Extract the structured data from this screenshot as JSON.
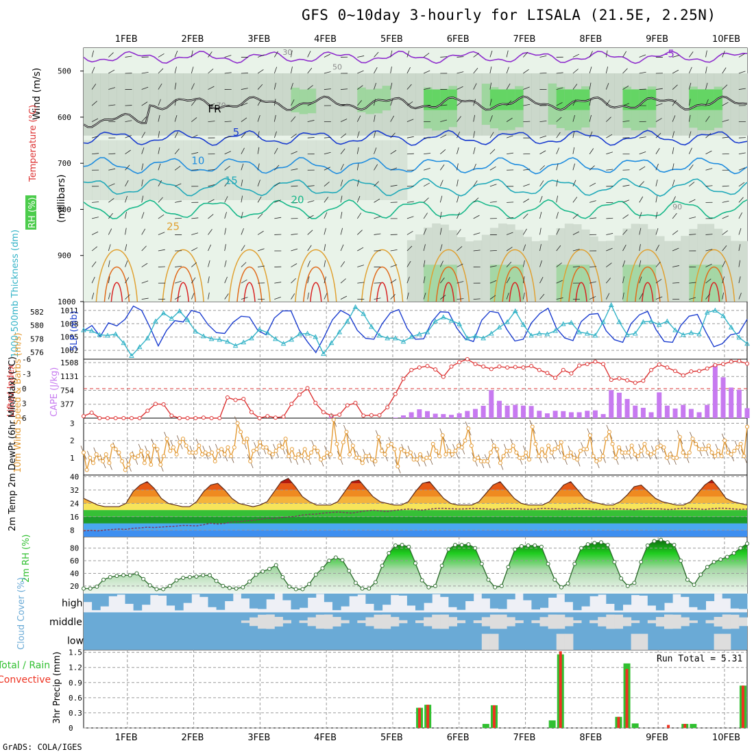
{
  "title": "GFS 0~10day 3-hourly for LISALA (21.5E, 2.25N)",
  "footer": "GrADS: COLA/IGES",
  "colors": {
    "grid": "#9a9a9a",
    "slp": "#1a3ccf",
    "thick": "#33b3c7",
    "li": "#dd3333",
    "cape": "#c77af0",
    "wind": "#e49a33",
    "rh": "#2fbf2f",
    "cloud": "#6aaad6",
    "precip_total": "#30c030",
    "precip_conv": "#ee3322"
  },
  "chart_data": [
    {
      "type": "contour",
      "name": "upper-air",
      "dates": [
        "1FEB",
        "2FEB",
        "3FEB",
        "4FEB",
        "5FEB",
        "6FEB",
        "7FEB",
        "8FEB",
        "9FEB",
        "10FEB"
      ],
      "ylabel": "(millibars)",
      "ylim": [
        1000,
        450
      ],
      "yticks": [
        500,
        600,
        700,
        800,
        900,
        1000
      ],
      "legend": [
        "Wind (m/s)",
        "Temperature (°C)",
        "RH (%)"
      ],
      "isotherm_labels": [
        {
          "text": "-5",
          "p": 500
        },
        {
          "text": "FR",
          "p": 610
        },
        {
          "text": "5",
          "p": 645
        },
        {
          "text": "10",
          "p": 700
        },
        {
          "text": "15",
          "p": 740
        },
        {
          "text": "20",
          "p": 775
        },
        {
          "text": "25",
          "p": 840
        }
      ],
      "rh_labels": [
        "30",
        "50",
        "70",
        "90"
      ]
    },
    {
      "type": "line",
      "name": "thickness-slp",
      "ylabel_left": "1000-500mb Thickness (dm)",
      "ylabel_right": "SLP (mb)",
      "left_ticks": [
        576,
        578,
        580,
        582
      ],
      "right_ticks": [
        1002,
        1005,
        1008,
        1011
      ],
      "series": [
        {
          "name": "SLP (mb)",
          "values": [
            1006.4,
            1007.6,
            1005.1,
            1008.2,
            1007.5,
            1009.0,
            1012.0,
            1011.0,
            1007.2,
            1003.0,
            1006.5,
            1008.7,
            1008.4,
            1011.0,
            1010.5,
            1007.8,
            1006.0,
            1005.8,
            1008.3,
            1009.7,
            1009.5,
            1006.5,
            1005.5,
            1009.3,
            1010.9,
            1010.9,
            1006.6,
            1003.9,
            1001.5,
            1005.0,
            1008.9,
            1011.0,
            1010.0,
            1006.5,
            1004.7,
            1004.5,
            1008.0,
            1010.5,
            1011.2,
            1007.0,
            1004.5,
            1004.6,
            1008.5,
            1010.7,
            1010.6,
            1007.0,
            1004.6,
            1004.0,
            1008.8,
            1010.8,
            1010.5,
            1006.8,
            1004.1,
            1004.5,
            1008.2,
            1010.3,
            1011.5,
            1007.0,
            1004.8,
            1004.2,
            1008.5,
            1010.1,
            1010.3,
            1006.4,
            1004.4,
            1003.8,
            1008.0,
            1010.0,
            1010.8,
            1006.7,
            1004.0,
            1003.8,
            1007.6,
            1009.7,
            1010.1,
            1006.2,
            1002.8,
            1003.5,
            1005.5,
            1005.9,
            1009.0
          ]
        },
        {
          "name": "Thickness (dm)",
          "values": [
            579.3,
            579.2,
            578.6,
            578.5,
            578.7,
            577.4,
            575.5,
            576.8,
            578.1,
            580.6,
            581.8,
            581.0,
            582.1,
            580.8,
            579.1,
            578.4,
            578.0,
            577.9,
            577.6,
            577.0,
            577.5,
            578.1,
            579.4,
            578.9,
            578.0,
            577.3,
            577.9,
            578.7,
            578.8,
            578.3,
            575.8,
            577.4,
            579.0,
            580.6,
            582.7,
            581.7,
            579.8,
            578.5,
            578.1,
            578.1,
            577.6,
            578.3,
            578.7,
            579.0,
            580.6,
            581.2,
            580.7,
            580.2,
            578.1,
            578.4,
            578.1,
            578.8,
            579.7,
            580.5,
            582.1,
            580.1,
            578.5,
            578.8,
            578.7,
            579.2,
            580.2,
            580.4,
            579.0,
            578.8,
            578.5,
            580.5,
            583.0,
            580.5,
            578.6,
            578.8,
            580.5,
            580.6,
            580.1,
            580.6,
            579.3,
            578.6,
            578.9,
            578.7,
            581.9,
            582.2,
            581.4,
            579.7,
            578.2,
            577.3
          ]
        }
      ]
    },
    {
      "type": "bar-line",
      "name": "cape-li",
      "ylabel_left": "Lifted Index",
      "ylabel_right": "CAPE (J/kg)",
      "li_ticks": [
        -6,
        -3,
        0,
        3,
        6
      ],
      "cape_ticks": [
        377,
        754,
        1131,
        1508
      ],
      "series": [
        {
          "name": "Lifted Index",
          "values": [
            5.6,
            4.9,
            6.0,
            6.0,
            6.0,
            6.0,
            6.0,
            6.0,
            4.5,
            3.1,
            3.2,
            5.5,
            6.0,
            6.0,
            6.0,
            5.9,
            6.0,
            6.0,
            1.8,
            2.3,
            2.1,
            4.8,
            6.0,
            5.6,
            5.9,
            5.7,
            3.1,
            1.2,
            -0.1,
            2.9,
            4.8,
            5.5,
            5.3,
            3.4,
            2.9,
            5.5,
            5.4,
            5.4,
            3.8,
            1.1,
            -2.0,
            -3.8,
            -4.3,
            -4.6,
            -3.9,
            -2.4,
            -4.5,
            -5.4,
            -6.0,
            -5.0,
            -4.5,
            -4.0,
            -4.5,
            -4.3,
            -4.4,
            -4.3,
            -4.6,
            -3.8,
            -3.2,
            -2.2,
            -3.8,
            -3.1,
            -4.7,
            -5.0,
            -5.5,
            -5.0,
            -1.8,
            -2.1,
            -1.7,
            -1.2,
            -1.6,
            -3.8,
            -4.9,
            -4.3,
            -3.6,
            -2.7,
            -3.5,
            -3.6,
            -4.1,
            -4.8,
            -5.0,
            -5.5,
            -5.6,
            -5.1
          ]
        },
        {
          "name": "CAPE (J/kg)",
          "values": [
            0,
            0,
            0,
            0,
            0,
            0,
            0,
            0,
            0,
            0,
            0,
            0,
            0,
            0,
            0,
            0,
            0,
            0,
            0,
            0,
            0,
            0,
            0,
            0,
            0,
            0,
            0,
            0,
            0,
            0,
            0,
            70,
            0,
            0,
            0,
            0,
            0,
            0,
            0,
            15,
            75,
            160,
            240,
            190,
            120,
            110,
            90,
            130,
            195,
            250,
            335,
            760,
            470,
            340,
            360,
            340,
            330,
            200,
            130,
            200,
            190,
            160,
            160,
            200,
            210,
            110,
            760,
            690,
            520,
            340,
            280,
            160,
            700,
            340,
            260,
            360,
            250,
            160,
            360,
            1460,
            1110,
            830,
            770,
            270
          ]
        }
      ]
    },
    {
      "type": "line",
      "name": "wind10m",
      "ylabel": "10m Wind Speed & Barbs (m/s)",
      "yticks": [
        1,
        2,
        3
      ],
      "values": [
        1.3,
        0.3,
        1.0,
        0.7,
        1.2,
        1.0,
        0.8,
        1.2,
        0.7,
        1.7,
        1.5,
        1.3,
        0.8,
        0.3,
        0.6,
        1.2,
        1.0,
        1.1,
        1.4,
        0.7,
        1.3,
        0.6,
        1.7,
        1.5,
        0.6,
        1.1,
        2.1,
        1.4,
        1.6,
        1.2,
        1.9,
        2.1,
        1.7,
        1.3,
        1.3,
        1.3,
        1.7,
        1.2,
        1.3,
        1.2,
        1.3,
        0.8,
        1.4,
        1.5,
        1.2,
        1.6,
        1.1,
        1.6,
        3.0,
        2.5,
        1.9,
        2.1,
        0.8,
        1.4,
        1.5,
        1.9,
        1.6,
        1.6,
        1.3,
        1.2,
        1.4,
        1.7,
        1.6,
        2.1,
        1.1,
        1.5,
        1.0,
        1.2,
        1.1,
        1.5,
        1.0,
        1.3,
        1.6,
        1.4,
        0.9,
        1.0,
        1.3,
        1.2,
        3.2,
        1.8,
        1.0,
        1.9,
        2.5,
        1.2,
        1.7,
        1.0,
        1.0,
        0.7,
        1.1,
        1.1,
        0.9,
        0.8,
        2.2,
        1.4,
        1.2,
        1.7,
        1.8,
        1.5,
        0.5,
        1.5,
        1.4,
        1.2,
        1.3,
        0.9,
        0.9,
        1.2,
        0.9,
        1.0,
        1.0,
        1.8,
        1.4,
        1.1,
        2.3,
        1.2,
        1.4,
        1.2,
        1.4,
        1.7,
        1.6,
        2.0,
        2.7,
        1.7,
        0.9,
        1.0,
        0.8,
        0.8,
        0.8,
        1.3,
        1.7,
        1.5,
        0.7,
        1.1,
        1.4,
        1.4,
        1.7,
        1.3,
        1.0,
        1.0,
        1.3,
        0.9,
        2.8,
        1.8,
        1.1,
        1.5,
        1.1,
        1.7,
        1.3,
        1.5,
        1.6,
        1.9,
        1.0,
        1.1,
        1.3,
        1.0,
        0.9,
        1.4,
        1.5,
        1.5,
        2.3,
        1.1,
        0.8,
        0.9,
        1.1,
        2.1,
        2.5,
        1.8,
        1.0,
        1.6,
        1.3,
        1.3,
        1.3,
        1.7,
        1.2,
        1.1,
        1.4,
        1.8,
        1.3,
        1.2,
        1.3,
        1.6,
        1.7,
        1.6,
        1.0,
        1.2,
        1.0,
        1.0,
        2.2,
        1.3,
        1.1,
        1.3,
        2.1,
        1.8,
        1.5,
        1.5,
        1.5,
        1.7,
        1.3,
        1.1,
        1.4,
        1.1,
        2.0,
        1.3,
        1.2,
        1.4,
        1.6,
        1.8,
        1.1,
        2.8
      ]
    },
    {
      "type": "area",
      "name": "temperature2m",
      "ylabel": "2m Temp 2m DewPt (6hr Min/Max) (°C)",
      "yticks": [
        8,
        16,
        24,
        32,
        40
      ],
      "series": [
        {
          "name": "2m Temp",
          "values": [
            27,
            25,
            23,
            22,
            22,
            22,
            24,
            31,
            35,
            37,
            33,
            27,
            24,
            23,
            22,
            22,
            25,
            31,
            35,
            36,
            32,
            27,
            24,
            23,
            22,
            23,
            25,
            31,
            37,
            39,
            34,
            28,
            25,
            23,
            23,
            23,
            25,
            31,
            37,
            38,
            33,
            28,
            25,
            24,
            23,
            23,
            25,
            31,
            36,
            37,
            32,
            27,
            24,
            23,
            23,
            23,
            25,
            30,
            35,
            37,
            32,
            27,
            24,
            23,
            23,
            23,
            25,
            30,
            35,
            37,
            32,
            27,
            25,
            24,
            23,
            23,
            25,
            29,
            34,
            35,
            31,
            27,
            25,
            24,
            23,
            23,
            25,
            30,
            35,
            38,
            33,
            27,
            25,
            24,
            23
          ]
        },
        {
          "name": "2m DewPt",
          "values": [
            7.5,
            7.8,
            7.5,
            8,
            8.3,
            8.6,
            8.4,
            9.1,
            9.3,
            9.7,
            9.5,
            9.8,
            10.1,
            10.3,
            10.8,
            10.7,
            10.5,
            11.2,
            12.1,
            11.6,
            12.0,
            12.8,
            13.0,
            13.5,
            13.7,
            14.5,
            15.0,
            14.8,
            15.5,
            15.8,
            16.2,
            17.0,
            17.4,
            17.6,
            18.2,
            18.5,
            18.8,
            18.5,
            18.2,
            18.9,
            19.5,
            19.9,
            19.5,
            19.1,
            19.8,
            20.2,
            20.6,
            20.3,
            20.0,
            20.5,
            21.0,
            21.0,
            20.8,
            20.6,
            20.7,
            21.0,
            20.9,
            20.7,
            20.4,
            20.7,
            21.0,
            20.9,
            20.6,
            20.4,
            20.6,
            21.0,
            20.9,
            20.6,
            20.3,
            20.6,
            21.0,
            20.9,
            20.6,
            20.3,
            20.5,
            20.8,
            20.7,
            20.5,
            20.2,
            20.6,
            21.0,
            20.9,
            20.6,
            20.3,
            20.7,
            21.1,
            21.0,
            20.7,
            20.4,
            20.8,
            21.1,
            21.0,
            20.7,
            20.4,
            20.6
          ]
        }
      ]
    },
    {
      "type": "area",
      "name": "rh2m",
      "ylabel": "2m RH (%)",
      "yticks": [
        20,
        40,
        60,
        80
      ],
      "values": [
        16,
        16,
        19,
        30,
        34,
        36,
        37,
        37,
        40,
        31,
        21,
        15,
        15,
        20,
        29,
        33,
        34,
        35,
        37,
        37,
        28,
        20,
        17,
        16,
        18,
        27,
        38,
        43,
        47,
        53,
        34,
        19,
        15,
        15,
        23,
        38,
        48,
        60,
        65,
        61,
        44,
        25,
        16,
        16,
        26,
        52,
        72,
        84,
        85,
        82,
        56,
        29,
        18,
        20,
        52,
        78,
        85,
        85,
        86,
        80,
        55,
        30,
        18,
        20,
        50,
        78,
        83,
        84,
        84,
        82,
        55,
        30,
        18,
        24,
        55,
        80,
        86,
        88,
        89,
        85,
        58,
        32,
        20,
        25,
        58,
        84,
        91,
        93,
        89,
        85,
        60,
        30,
        22,
        38,
        50,
        58,
        62,
        66,
        72,
        80,
        87
      ]
    },
    {
      "type": "bar",
      "name": "cloud-cover",
      "ylabel": "Cloud Cover (%)",
      "levels": [
        "high",
        "middle",
        "low"
      ]
    },
    {
      "type": "bar",
      "name": "precip",
      "ylabel": "3hr Precip (mm)",
      "legend": [
        "Total / Rain",
        "Convective"
      ],
      "run_total_label": "Run Total = 5.31",
      "yticks": [
        0,
        0.3,
        0.6,
        0.9,
        1.2,
        1.5
      ],
      "bars": [
        {
          "t": 40.5,
          "total": 0.4,
          "conv": 0.4
        },
        {
          "t": 41.5,
          "total": 0.46,
          "conv": 0.46
        },
        {
          "t": 48.5,
          "total": 0.08,
          "conv": 0.0
        },
        {
          "t": 49.5,
          "total": 0.45,
          "conv": 0.45
        },
        {
          "t": 56.5,
          "total": 0.15,
          "conv": 0.0
        },
        {
          "t": 57.5,
          "total": 1.46,
          "conv": 1.52
        },
        {
          "t": 64.5,
          "total": 0.22,
          "conv": 0.22
        },
        {
          "t": 65.5,
          "total": 1.28,
          "conv": 1.17
        },
        {
          "t": 66.5,
          "total": 0.09,
          "conv": 0.0
        },
        {
          "t": 70.5,
          "total": 0.0,
          "conv": 0.06
        },
        {
          "t": 72.5,
          "total": 0.08,
          "conv": 0.08
        },
        {
          "t": 73.5,
          "total": 0.08,
          "conv": 0.0
        },
        {
          "t": 79.5,
          "total": 0.84,
          "conv": 0.84
        }
      ]
    }
  ]
}
